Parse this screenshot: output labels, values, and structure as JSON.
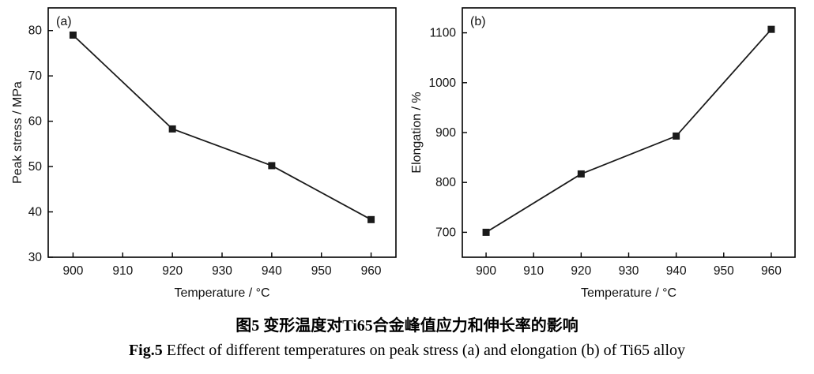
{
  "caption": {
    "line1": "图5 变形温度对Ti65合金峰值应力和伸长率的影响",
    "line2_prefix": "Fig.5",
    "line2_rest": " Effect of different temperatures on peak stress (a) and elongation (b) of Ti65 alloy"
  },
  "chart_data": [
    {
      "type": "line",
      "panel_label": "(a)",
      "title": "",
      "xlabel": "Temperature / °C",
      "ylabel": "Peak stress / MPa",
      "x": [
        900,
        920,
        940,
        960
      ],
      "y": [
        79,
        58.3,
        50.2,
        38.3
      ],
      "xlim": [
        895,
        965
      ],
      "ylim": [
        30,
        85
      ],
      "xticks": [
        900,
        910,
        920,
        930,
        940,
        950,
        960
      ],
      "yticks": [
        30,
        40,
        50,
        60,
        70,
        80
      ],
      "grid": false,
      "legend": "none",
      "line_color": "#1a1a1a",
      "marker": "square",
      "marker_color": "#1a1a1a"
    },
    {
      "type": "line",
      "panel_label": "(b)",
      "title": "",
      "xlabel": "Temperature / °C",
      "ylabel": "Elongation / %",
      "x": [
        900,
        920,
        940,
        960
      ],
      "y": [
        700,
        817,
        893,
        1107
      ],
      "xlim": [
        895,
        965
      ],
      "ylim": [
        650,
        1150
      ],
      "xticks": [
        900,
        910,
        920,
        930,
        940,
        950,
        960
      ],
      "yticks": [
        700,
        800,
        900,
        1000,
        1100
      ],
      "grid": false,
      "legend": "none",
      "line_color": "#1a1a1a",
      "marker": "square",
      "marker_color": "#1a1a1a"
    }
  ]
}
